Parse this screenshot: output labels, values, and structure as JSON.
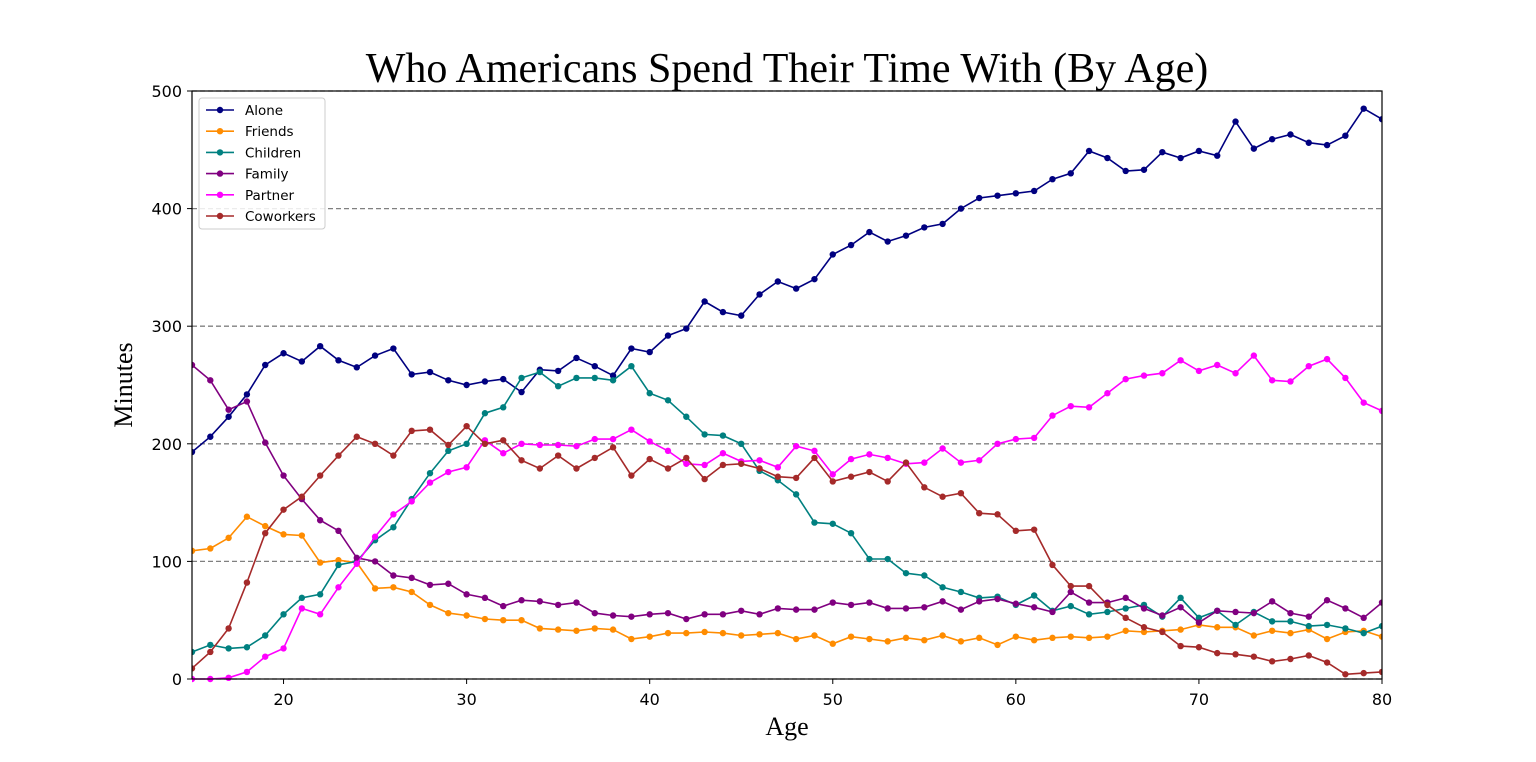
{
  "chart_data": {
    "type": "line",
    "title": "Who Americans Spend Their Time With (By Age)",
    "xlabel": "Age",
    "ylabel": "Minutes",
    "xlim": [
      15,
      80
    ],
    "ylim": [
      0,
      500
    ],
    "xticks": [
      20,
      30,
      40,
      50,
      60,
      70,
      80
    ],
    "yticks": [
      0,
      100,
      200,
      300,
      400,
      500
    ],
    "grid": "horizontal dashed",
    "legend_position": "upper-left",
    "x": [
      15,
      16,
      17,
      18,
      19,
      20,
      21,
      22,
      23,
      24,
      25,
      26,
      27,
      28,
      29,
      30,
      31,
      32,
      33,
      34,
      35,
      36,
      37,
      38,
      39,
      40,
      41,
      42,
      43,
      44,
      45,
      46,
      47,
      48,
      49,
      50,
      51,
      52,
      53,
      54,
      55,
      56,
      57,
      58,
      59,
      60,
      61,
      62,
      63,
      64,
      65,
      66,
      67,
      68,
      69,
      70,
      71,
      72,
      73,
      74,
      75,
      76,
      77,
      78,
      79,
      80
    ],
    "series": [
      {
        "name": "Alone",
        "color": "#000080",
        "values": [
          193,
          206,
          223,
          242,
          267,
          277,
          270,
          283,
          271,
          265,
          275,
          281,
          259,
          261,
          254,
          250,
          253,
          255,
          244,
          263,
          262,
          273,
          266,
          258,
          281,
          278,
          292,
          298,
          321,
          312,
          309,
          327,
          338,
          332,
          340,
          361,
          369,
          380,
          372,
          377,
          384,
          387,
          400,
          409,
          411,
          413,
          415,
          425,
          430,
          449,
          443,
          432,
          433,
          448,
          443,
          449,
          445,
          474,
          451,
          459,
          463,
          456,
          454,
          462,
          485,
          476
        ]
      },
      {
        "name": "Friends",
        "color": "#ff8c00",
        "values": [
          109,
          111,
          120,
          138,
          130,
          123,
          122,
          99,
          101,
          99,
          77,
          78,
          74,
          63,
          56,
          54,
          51,
          50,
          50,
          43,
          42,
          41,
          43,
          42,
          34,
          36,
          39,
          39,
          40,
          39,
          37,
          38,
          39,
          34,
          37,
          30,
          36,
          34,
          32,
          35,
          33,
          37,
          32,
          35,
          29,
          36,
          33,
          35,
          36,
          35,
          36,
          41,
          40,
          41,
          42,
          46,
          44,
          44,
          37,
          41,
          39,
          42,
          34,
          40,
          41,
          36
        ]
      },
      {
        "name": "Children",
        "color": "#008080",
        "values": [
          23,
          29,
          26,
          27,
          37,
          55,
          69,
          72,
          97,
          100,
          118,
          129,
          153,
          175,
          194,
          200,
          226,
          231,
          256,
          261,
          249,
          256,
          256,
          254,
          266,
          243,
          237,
          223,
          208,
          207,
          200,
          177,
          169,
          157,
          133,
          132,
          124,
          102,
          102,
          90,
          88,
          78,
          74,
          69,
          70,
          63,
          71,
          58,
          62,
          55,
          57,
          60,
          63,
          53,
          69,
          52,
          58,
          46,
          57,
          49,
          49,
          45,
          46,
          43,
          39,
          45
        ]
      },
      {
        "name": "Family",
        "color": "#800080",
        "values": [
          267,
          254,
          229,
          236,
          201,
          173,
          153,
          135,
          126,
          103,
          100,
          88,
          86,
          80,
          81,
          72,
          69,
          62,
          67,
          66,
          63,
          65,
          56,
          54,
          53,
          55,
          56,
          51,
          55,
          55,
          58,
          55,
          60,
          59,
          59,
          65,
          63,
          65,
          60,
          60,
          61,
          66,
          59,
          66,
          68,
          64,
          61,
          57,
          74,
          65,
          65,
          69,
          60,
          54,
          61,
          48,
          58,
          57,
          56,
          66,
          56,
          53,
          67,
          60,
          52,
          65
        ]
      },
      {
        "name": "Partner",
        "color": "#ff00ff",
        "values": [
          0,
          0,
          1,
          6,
          19,
          26,
          60,
          55,
          78,
          98,
          121,
          140,
          151,
          167,
          176,
          180,
          203,
          192,
          200,
          199,
          199,
          198,
          204,
          204,
          212,
          202,
          194,
          183,
          182,
          192,
          185,
          186,
          180,
          198,
          194,
          174,
          187,
          191,
          188,
          183,
          184,
          196,
          184,
          186,
          200,
          204,
          205,
          224,
          232,
          231,
          243,
          255,
          258,
          260,
          271,
          262,
          267,
          260,
          275,
          254,
          253,
          266,
          272,
          256,
          235,
          228
        ]
      },
      {
        "name": "Coworkers",
        "color": "#a52a2a",
        "values": [
          9,
          23,
          43,
          82,
          124,
          144,
          155,
          173,
          190,
          206,
          200,
          190,
          211,
          212,
          199,
          215,
          200,
          203,
          186,
          179,
          190,
          179,
          188,
          197,
          173,
          187,
          179,
          188,
          170,
          182,
          183,
          179,
          172,
          171,
          188,
          168,
          172,
          176,
          168,
          184,
          163,
          155,
          158,
          141,
          140,
          126,
          127,
          97,
          79,
          79,
          63,
          52,
          44,
          40,
          28,
          27,
          22,
          21,
          19,
          15,
          17,
          20,
          14,
          4,
          5,
          6
        ]
      }
    ]
  }
}
